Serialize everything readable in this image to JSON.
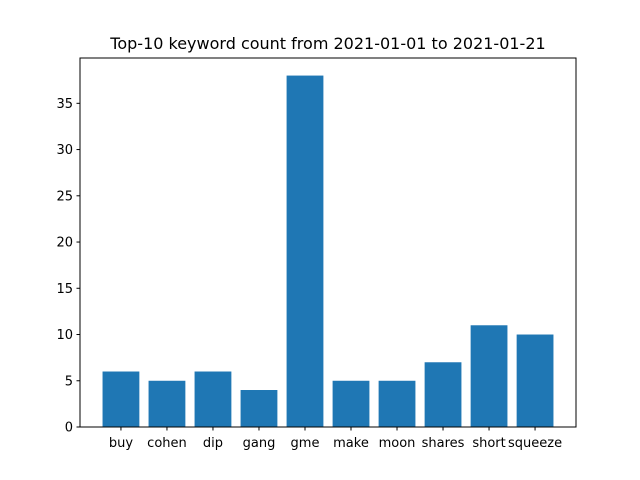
{
  "chart_data": {
    "type": "bar",
    "title": "Top-10 keyword count from 2021-01-01 to 2021-01-21",
    "xlabel": "",
    "ylabel": "",
    "categories": [
      "buy",
      "cohen",
      "dip",
      "gang",
      "gme",
      "make",
      "moon",
      "shares",
      "short",
      "squeeze"
    ],
    "values": [
      6,
      5,
      6,
      4,
      38,
      5,
      5,
      7,
      11,
      10
    ],
    "ylim": [
      0,
      39.9
    ],
    "yticks": [
      0,
      5,
      10,
      15,
      20,
      25,
      30,
      35
    ],
    "bar_color": "#1f77b4",
    "grid": false,
    "legend": "none"
  }
}
